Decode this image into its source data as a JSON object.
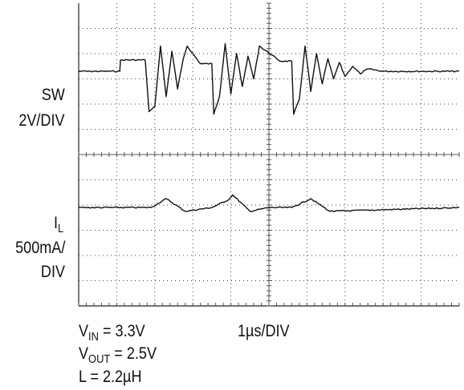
{
  "chart_data": {
    "type": "line",
    "title": "",
    "xlabel": "",
    "ylabel": "",
    "grid": true,
    "legend": "none",
    "time_div": "1µs/DIV",
    "xlim": [
      0,
      10
    ],
    "divisions": {
      "x": 10,
      "y": 12
    },
    "series": [
      {
        "name": "SW",
        "scale": "2V/DIV",
        "baseline_div": 9.3,
        "x": [
          0.0,
          1.08,
          1.1,
          1.75,
          1.85,
          2.0,
          2.15,
          2.3,
          2.45,
          2.6,
          2.75,
          2.85,
          3.2,
          3.5,
          3.55,
          3.7,
          3.85,
          4.0,
          4.15,
          4.3,
          4.45,
          4.6,
          4.75,
          5.3,
          5.6,
          5.65,
          5.8,
          5.95,
          6.1,
          6.25,
          6.4,
          6.55,
          6.7,
          6.85,
          7.0,
          7.2,
          7.4,
          7.6,
          8.0,
          10.0
        ],
        "y_div": [
          9.3,
          9.3,
          9.75,
          9.75,
          7.7,
          7.9,
          10.3,
          8.3,
          10.1,
          8.6,
          9.8,
          10.3,
          9.6,
          9.6,
          7.6,
          8.3,
          10.4,
          8.4,
          10.0,
          8.7,
          9.9,
          9.0,
          10.3,
          9.7,
          9.7,
          7.6,
          8.2,
          10.3,
          8.5,
          10.0,
          8.8,
          9.8,
          9.0,
          9.65,
          9.1,
          9.5,
          9.2,
          9.4,
          9.3,
          9.3
        ]
      },
      {
        "name": "IL",
        "scale": "500mA/DIV",
        "baseline_div": 3.9,
        "x": [
          0.0,
          1.9,
          2.3,
          2.8,
          3.5,
          3.95,
          4.05,
          4.5,
          5.0,
          5.6,
          6.1,
          6.6,
          10.0
        ],
        "y_div": [
          3.9,
          3.9,
          4.25,
          3.75,
          3.9,
          4.22,
          4.4,
          3.75,
          3.9,
          3.9,
          4.25,
          3.75,
          3.9
        ]
      }
    ]
  },
  "labels": {
    "sw": "SW",
    "sw_scale": "2V/DIV",
    "il_main": "I",
    "il_sub": "L",
    "il_scale_1": "500mA/",
    "il_scale_2": "DIV",
    "vin_main": "V",
    "vin_sub": "IN",
    "vin_val": " = 3.3V",
    "vout_main": "V",
    "vout_sub": "OUT",
    "vout_val": " = 2.5V",
    "inductor": "L = 2.2µH",
    "time_div": "1µs/DIV"
  }
}
